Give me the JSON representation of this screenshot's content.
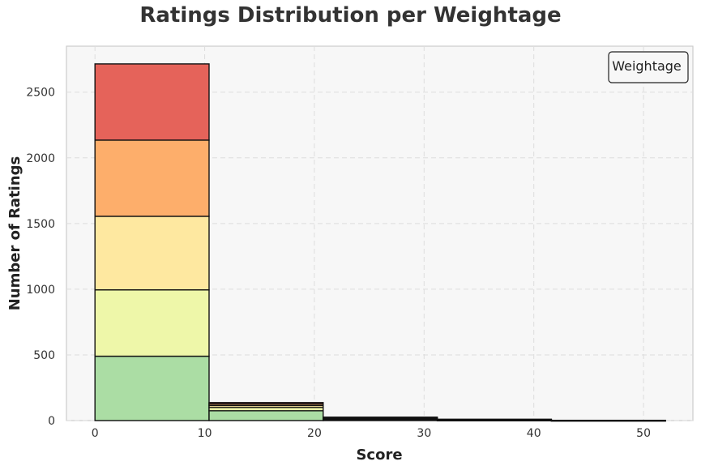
{
  "chart_data": {
    "type": "bar",
    "title": "Ratings Distribution per Weightage",
    "xlabel": "Score",
    "ylabel": "Number of Ratings",
    "xlim": [
      -2.6,
      54.5
    ],
    "ylim": [
      0,
      2850
    ],
    "x_ticks": [
      0,
      10,
      20,
      30,
      40,
      50
    ],
    "y_ticks": [
      0,
      500,
      1000,
      1500,
      2000,
      2500
    ],
    "bin_edges": [
      0,
      10.4,
      20.8,
      31.2,
      41.6,
      52.0
    ],
    "stacked": true,
    "grid": true,
    "legend": {
      "title": "Weightage",
      "position": "top-right"
    },
    "series": [
      {
        "color": "#abdda4",
        "values": [
          490,
          75,
          8,
          3,
          1
        ]
      },
      {
        "color": "#eef7a9",
        "values": [
          505,
          25,
          6,
          2,
          1
        ]
      },
      {
        "color": "#fee8a0",
        "values": [
          560,
          15,
          5,
          2,
          0
        ]
      },
      {
        "color": "#fdae6b",
        "values": [
          580,
          12,
          4,
          2,
          0
        ]
      },
      {
        "color": "#e5635a",
        "values": [
          580,
          10,
          3,
          1,
          0
        ]
      }
    ]
  }
}
